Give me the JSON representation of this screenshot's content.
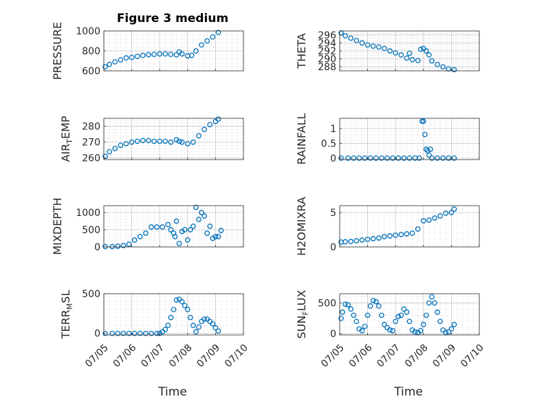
{
  "title": "Figure 3 medium",
  "colors": {
    "marker": "#0072BD",
    "axis": "#262626",
    "grid": "#d0d0d0"
  },
  "chart_data": [
    {
      "type": "scatter",
      "ylabel": "PRESSURE",
      "ylabel_sub": "",
      "ylim": [
        600,
        1000
      ],
      "yticks": [
        600,
        800,
        1000
      ],
      "x": [
        5.05,
        5.2,
        5.4,
        5.6,
        5.8,
        6.0,
        6.2,
        6.4,
        6.6,
        6.8,
        7.0,
        7.2,
        7.4,
        7.6,
        7.7,
        7.8,
        8.0,
        8.15,
        8.3,
        8.5,
        8.7,
        8.9,
        9.1
      ],
      "y": [
        640,
        665,
        690,
        710,
        730,
        735,
        745,
        755,
        762,
        765,
        770,
        770,
        765,
        760,
        790,
        770,
        750,
        755,
        800,
        860,
        900,
        940,
        985
      ]
    },
    {
      "type": "scatter",
      "ylabel": "THETA",
      "ylabel_sub": "",
      "ylim": [
        287,
        297
      ],
      "yticks": [
        288,
        290,
        292,
        294,
        296
      ],
      "x": [
        5.05,
        5.2,
        5.4,
        5.6,
        5.8,
        6.0,
        6.2,
        6.4,
        6.6,
        6.8,
        7.0,
        7.2,
        7.4,
        7.5,
        7.6,
        7.8,
        7.9,
        8.0,
        8.1,
        8.2,
        8.3,
        8.5,
        8.7,
        8.9,
        9.1
      ],
      "y": [
        296.5,
        295.8,
        295.2,
        294.6,
        294.0,
        293.5,
        293.2,
        293.0,
        292.6,
        292.0,
        291.5,
        291.0,
        290.2,
        291.4,
        289.8,
        289.6,
        292.4,
        292.6,
        292.0,
        291.0,
        289.5,
        288.6,
        288.0,
        287.5,
        287.3
      ]
    },
    {
      "type": "scatter",
      "ylabel": "AIR",
      "ylabel_sub": "T",
      "ylabel_rest": "EMP",
      "ylim": [
        259,
        285
      ],
      "yticks": [
        260,
        270,
        280
      ],
      "x": [
        5.05,
        5.2,
        5.4,
        5.6,
        5.8,
        6.0,
        6.2,
        6.4,
        6.6,
        6.8,
        7.0,
        7.2,
        7.4,
        7.6,
        7.7,
        7.8,
        8.0,
        8.2,
        8.4,
        8.6,
        8.8,
        9.0,
        9.1
      ],
      "y": [
        261,
        264,
        266,
        268,
        269,
        270,
        270.5,
        271,
        271,
        270.5,
        270.5,
        270.5,
        270,
        271.5,
        270.5,
        270,
        269,
        270,
        274,
        278,
        281,
        283,
        284.5
      ]
    },
    {
      "type": "scatter",
      "ylabel": "RAINFALL",
      "ylabel_sub": "",
      "ylim": [
        -0.05,
        1.35
      ],
      "yticks": [
        0,
        0.5,
        1
      ],
      "x": [
        5.05,
        5.3,
        5.5,
        5.7,
        5.9,
        6.1,
        6.3,
        6.5,
        6.7,
        6.9,
        7.1,
        7.3,
        7.5,
        7.7,
        7.85,
        7.95,
        8.0,
        8.05,
        8.1,
        8.15,
        8.2,
        8.25,
        8.3,
        8.5,
        8.7,
        8.9,
        9.1
      ],
      "y": [
        0,
        0,
        0,
        0,
        0,
        0,
        0,
        0,
        0,
        0,
        0,
        0,
        0,
        0,
        0,
        1.25,
        1.25,
        0.8,
        0.3,
        0.25,
        0.1,
        0.3,
        0,
        0,
        0,
        0,
        0
      ]
    },
    {
      "type": "scatter",
      "ylabel": "MIXDEPTH",
      "ylabel_sub": "",
      "ylim": [
        0,
        1200
      ],
      "yticks": [
        0,
        500,
        1000
      ],
      "x": [
        5.05,
        5.3,
        5.5,
        5.7,
        5.9,
        6.1,
        6.3,
        6.5,
        6.7,
        6.9,
        7.1,
        7.3,
        7.4,
        7.5,
        7.55,
        7.6,
        7.7,
        7.8,
        7.9,
        8.0,
        8.1,
        8.2,
        8.3,
        8.4,
        8.5,
        8.6,
        8.7,
        8.8,
        8.9,
        9.0,
        9.1,
        9.2
      ],
      "y": [
        10,
        10,
        20,
        40,
        80,
        200,
        300,
        400,
        580,
        580,
        580,
        650,
        500,
        400,
        300,
        750,
        100,
        450,
        500,
        200,
        500,
        600,
        1150,
        800,
        1000,
        900,
        400,
        600,
        250,
        300,
        300,
        480
      ]
    },
    {
      "type": "scatter",
      "ylabel": "H2OMIXRA",
      "ylabel_sub": "",
      "ylim": [
        0,
        6
      ],
      "yticks": [
        0,
        5
      ],
      "x": [
        5.05,
        5.2,
        5.4,
        5.6,
        5.8,
        6.0,
        6.2,
        6.4,
        6.6,
        6.8,
        7.0,
        7.2,
        7.4,
        7.6,
        7.8,
        8.0,
        8.2,
        8.4,
        8.6,
        8.8,
        9.0,
        9.1
      ],
      "y": [
        0.7,
        0.75,
        0.8,
        0.9,
        1.0,
        1.1,
        1.2,
        1.3,
        1.5,
        1.6,
        1.7,
        1.8,
        1.9,
        2.0,
        2.6,
        3.8,
        3.9,
        4.2,
        4.5,
        4.9,
        5.0,
        5.5
      ]
    },
    {
      "type": "scatter",
      "ylabel": "TERR",
      "ylabel_sub": "M",
      "ylabel_rest": "SL",
      "ylim": [
        -20,
        500
      ],
      "yticks": [
        0,
        500
      ],
      "x": [
        5.05,
        5.3,
        5.5,
        5.7,
        5.9,
        6.1,
        6.3,
        6.5,
        6.7,
        6.9,
        7.0,
        7.1,
        7.2,
        7.3,
        7.4,
        7.5,
        7.6,
        7.7,
        7.8,
        7.9,
        8.0,
        8.1,
        8.2,
        8.3,
        8.4,
        8.5,
        8.6,
        8.7,
        8.8,
        8.9,
        9.0,
        9.1
      ],
      "y": [
        0,
        0,
        0,
        0,
        0,
        0,
        0,
        0,
        0,
        0,
        0,
        20,
        50,
        100,
        200,
        300,
        420,
        430,
        400,
        350,
        300,
        200,
        100,
        20,
        80,
        150,
        180,
        180,
        150,
        120,
        70,
        30
      ]
    },
    {
      "type": "scatter",
      "ylabel": "SUN",
      "ylabel_sub": "F",
      "ylabel_rest": "LUX",
      "ylim": [
        -20,
        650
      ],
      "yticks": [
        0,
        500
      ],
      "x": [
        5.05,
        5.1,
        5.2,
        5.3,
        5.4,
        5.5,
        5.6,
        5.7,
        5.8,
        5.9,
        6.0,
        6.1,
        6.2,
        6.3,
        6.4,
        6.5,
        6.6,
        6.7,
        6.8,
        6.9,
        7.0,
        7.1,
        7.2,
        7.3,
        7.4,
        7.5,
        7.6,
        7.7,
        7.8,
        7.9,
        8.0,
        8.1,
        8.2,
        8.3,
        8.4,
        8.5,
        8.6,
        8.7,
        8.8,
        8.9,
        9.0,
        9.1
      ],
      "y": [
        250,
        350,
        480,
        470,
        400,
        300,
        200,
        80,
        50,
        120,
        300,
        450,
        540,
        520,
        450,
        300,
        150,
        100,
        60,
        50,
        200,
        280,
        300,
        400,
        350,
        200,
        60,
        30,
        20,
        50,
        150,
        300,
        500,
        600,
        500,
        350,
        200,
        60,
        20,
        30,
        80,
        150
      ]
    }
  ],
  "x_axis": {
    "xlim": [
      5,
      10
    ],
    "xticks": [
      5,
      6,
      7,
      8,
      9,
      10
    ],
    "tick_labels": [
      "07/05",
      "07/06",
      "07/07",
      "07/08",
      "07/09",
      "07/10"
    ],
    "xlabel": "Time"
  }
}
